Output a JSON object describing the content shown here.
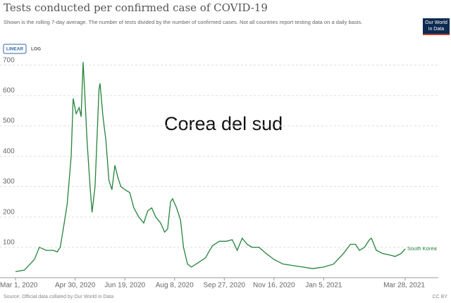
{
  "chart_data": {
    "type": "line",
    "title": "Tests conducted per confirmed case of COVID-19",
    "subtitle": "Shown is the rolling 7-day average. The number of tests divided by the number of confirmed cases. Not all countries report testing data on a daily basis.",
    "annotation": "Corea del sud",
    "buttons": [
      "LINEAR",
      "LOG"
    ],
    "logo": [
      "Our World",
      "in Data"
    ],
    "source": "Source: Official data collated by Our World in Data",
    "license": "CC BY",
    "x": [
      "2020-03-01",
      "2020-03-10",
      "2020-03-20",
      "2020-03-25",
      "2020-04-01",
      "2020-04-08",
      "2020-04-12",
      "2020-04-15",
      "2020-04-20",
      "2020-04-22",
      "2020-04-26",
      "2020-04-28",
      "2020-05-01",
      "2020-05-04",
      "2020-05-06",
      "2020-05-08",
      "2020-05-09",
      "2020-05-12",
      "2020-05-15",
      "2020-05-17",
      "2020-05-20",
      "2020-05-24",
      "2020-05-25",
      "2020-05-28",
      "2020-05-31",
      "2020-06-03",
      "2020-06-06",
      "2020-06-09",
      "2020-06-12",
      "2020-06-15",
      "2020-06-19",
      "2020-06-24",
      "2020-06-28",
      "2020-07-03",
      "2020-07-08",
      "2020-07-12",
      "2020-07-16",
      "2020-07-20",
      "2020-07-25",
      "2020-07-29",
      "2020-08-01",
      "2020-08-04",
      "2020-08-06",
      "2020-08-10",
      "2020-08-14",
      "2020-08-17",
      "2020-08-21",
      "2020-08-25",
      "2020-09-01",
      "2020-09-08",
      "2020-09-15",
      "2020-09-22",
      "2020-09-29",
      "2020-10-05",
      "2020-10-10",
      "2020-10-15",
      "2020-10-20",
      "2020-10-25",
      "2020-11-01",
      "2020-11-08",
      "2020-11-16",
      "2020-11-25",
      "2020-12-05",
      "2020-12-15",
      "2020-12-25",
      "2021-01-05",
      "2021-01-15",
      "2021-01-25",
      "2021-02-01",
      "2021-02-06",
      "2021-02-10",
      "2021-02-15",
      "2021-02-20",
      "2021-02-22",
      "2021-02-27",
      "2021-03-05",
      "2021-03-12",
      "2021-03-18",
      "2021-03-24",
      "2021-03-28"
    ],
    "series": [
      {
        "name": "South Korea",
        "color": "#24833a",
        "values": [
          20,
          25,
          60,
          100,
          90,
          90,
          85,
          100,
          200,
          243,
          400,
          590,
          540,
          560,
          530,
          710,
          650,
          450,
          300,
          215,
          300,
          620,
          640,
          530,
          450,
          320,
          290,
          370,
          330,
          300,
          290,
          280,
          230,
          200,
          180,
          220,
          230,
          200,
          180,
          150,
          160,
          250,
          260,
          230,
          190,
          100,
          45,
          35,
          50,
          65,
          105,
          120,
          120,
          125,
          90,
          130,
          110,
          100,
          100,
          80,
          60,
          45,
          40,
          35,
          30,
          35,
          45,
          80,
          110,
          110,
          90,
          100,
          125,
          130,
          90,
          80,
          75,
          70,
          80,
          95
        ]
      }
    ],
    "xlim": [
      "2020-03-01",
      "2021-03-28"
    ],
    "xticks": [
      {
        "value": "2020-03-01",
        "label": "Mar 1, 2020"
      },
      {
        "value": "2020-04-30",
        "label": "Apr 30, 2020"
      },
      {
        "value": "2020-06-19",
        "label": "Jun 19, 2020"
      },
      {
        "value": "2020-08-08",
        "label": "Aug 8, 2020"
      },
      {
        "value": "2020-09-27",
        "label": "Sep 27, 2020"
      },
      {
        "value": "2020-11-16",
        "label": "Nov 16, 2020"
      },
      {
        "value": "2021-01-05",
        "label": "Jan 5, 2021"
      },
      {
        "value": "2021-03-28",
        "label": "Mar 28, 2021"
      }
    ],
    "ylim": [
      0,
      720
    ],
    "yticks": [
      100,
      200,
      300,
      400,
      500,
      600,
      700
    ],
    "grid": true
  }
}
